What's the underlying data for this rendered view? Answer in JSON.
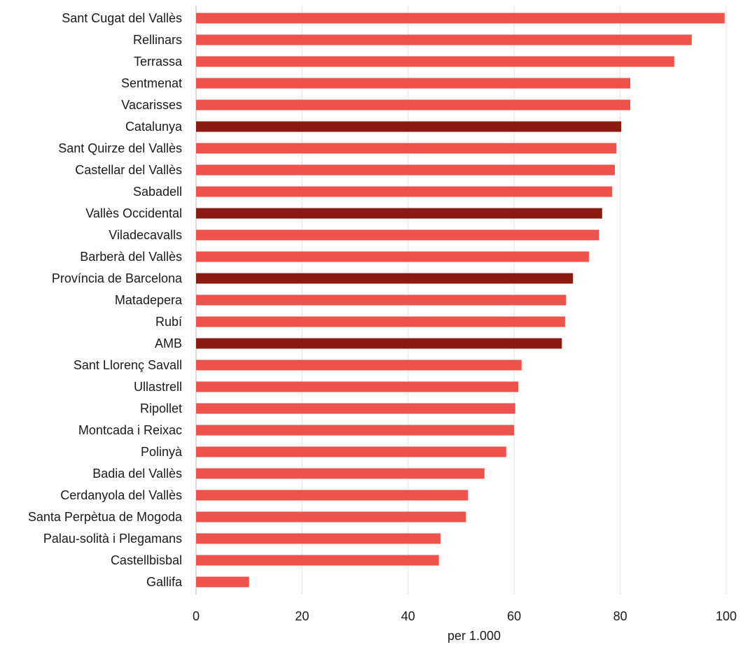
{
  "chart_data": {
    "type": "bar",
    "orientation": "horizontal",
    "title": "",
    "xlabel": "per 1.000",
    "ylabel": "",
    "xlim": [
      0,
      100
    ],
    "x_ticks": [
      0,
      20,
      40,
      60,
      80,
      100
    ],
    "grid": "vertical",
    "legend": "none",
    "colors": {
      "municipality": "#ee524c",
      "aggregate": "#8b1a12"
    },
    "categories": [
      "Sant Cugat del Vallès",
      "Rellinars",
      "Terrassa",
      "Sentmenat",
      "Vacarisses",
      "Catalunya",
      "Sant Quirze del Vallès",
      "Castellar del Vallès",
      "Sabadell",
      "Vallès Occidental",
      "Viladecavalls",
      "Barberà del Vallès",
      "Província de Barcelona",
      "Matadepera",
      "Rubí",
      "AMB",
      "Sant Llorenç Savall",
      "Ullastrell",
      "Ripollet",
      "Montcada i Reixac",
      "Polinyà",
      "Badia del Vallès",
      "Cerdanyola del Vallès",
      "Santa Perpètua de Mogoda",
      "Palau-solità i Plegamans",
      "Castellbisbal",
      "Gallifa"
    ],
    "values": [
      99.7,
      93.5,
      90.2,
      81.9,
      81.9,
      80.2,
      79.3,
      79.0,
      78.5,
      76.6,
      76.0,
      74.1,
      71.1,
      69.8,
      69.6,
      69.0,
      61.4,
      60.8,
      60.2,
      60.0,
      58.5,
      54.4,
      51.3,
      50.9,
      46.1,
      45.8,
      10.0
    ],
    "highlight": [
      false,
      false,
      false,
      false,
      false,
      true,
      false,
      false,
      false,
      true,
      false,
      false,
      true,
      false,
      false,
      true,
      false,
      false,
      false,
      false,
      false,
      false,
      false,
      false,
      false,
      false,
      false
    ]
  }
}
